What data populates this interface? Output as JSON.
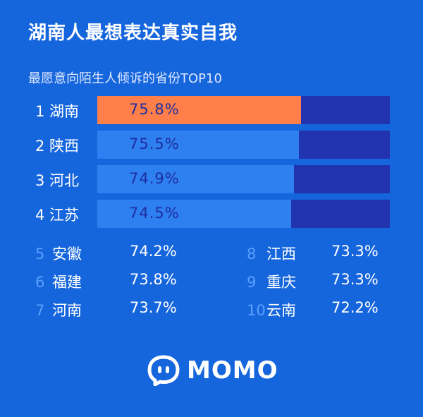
{
  "header": {
    "title": "湖南人最想表达真实自我",
    "subtitle": "最愿意向陌生人倾诉的省份TOP10"
  },
  "colors": {
    "background": "#1565dd",
    "highlight_bar": "#ff7f4a",
    "bar": "#2e7ff0",
    "track": "#2233b0",
    "rank_muted": "#5aa0ff"
  },
  "chart_data": {
    "type": "bar",
    "orientation": "horizontal",
    "title": "最愿意向陌生人倾诉的省份TOP10",
    "bars": [
      {
        "label": "1 湖南",
        "value": 75.8,
        "value_label": "75.8%",
        "highlight": true
      },
      {
        "label": "2 陕西",
        "value": 75.5,
        "value_label": "75.5%",
        "highlight": false
      },
      {
        "label": "3 河北",
        "value": 74.9,
        "value_label": "74.9%",
        "highlight": false
      },
      {
        "label": "4 江苏",
        "value": 74.5,
        "value_label": "74.5%",
        "highlight": false
      }
    ],
    "list": [
      {
        "rank": "5",
        "name": "安徽",
        "value": "74.2%"
      },
      {
        "rank": "6",
        "name": "福建",
        "value": "73.8%"
      },
      {
        "rank": "7",
        "name": "河南",
        "value": "73.7%"
      },
      {
        "rank": "8",
        "name": "江西",
        "value": "73.3%"
      },
      {
        "rank": "9",
        "name": "重庆",
        "value": "73.3%"
      },
      {
        "rank": "10",
        "name": "云南",
        "value": "72.2%"
      }
    ]
  },
  "logo": {
    "icon": "momo-face-icon",
    "text": "MOMO"
  }
}
